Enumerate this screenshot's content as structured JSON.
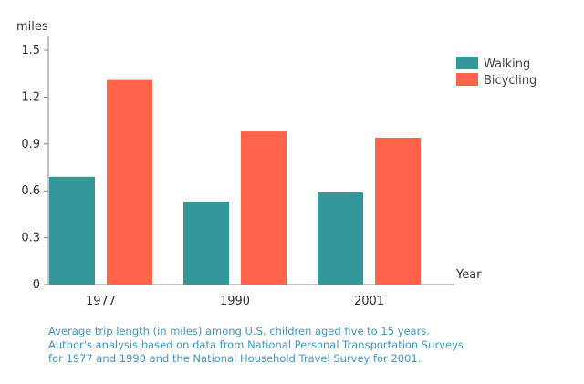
{
  "chart_data": {
    "type": "bar",
    "categories": [
      "1977",
      "1990",
      "2001"
    ],
    "series": [
      {
        "name": "Walking",
        "values": [
          0.69,
          0.53,
          0.59
        ]
      },
      {
        "name": "Bicycling",
        "values": [
          1.31,
          0.98,
          0.94
        ]
      }
    ],
    "xlabel": "Year",
    "ylabel": "miles",
    "ylim": [
      0,
      1.5
    ],
    "yticks": [
      "0",
      "0.3",
      "0.6",
      "0.9",
      "1.2",
      "1.5"
    ],
    "grid": false,
    "legend": "top-right",
    "colors": {
      "Walking": "#34979a",
      "Bicycling": "#ff634a"
    },
    "caption": [
      "Average trip length (in miles) among U.S. children aged five to 15 years.",
      "Author's analysis based on data from National Personal Transportation Surveys",
      "for 1977 and 1990 and the National Household Travel Survey for 2001."
    ]
  }
}
